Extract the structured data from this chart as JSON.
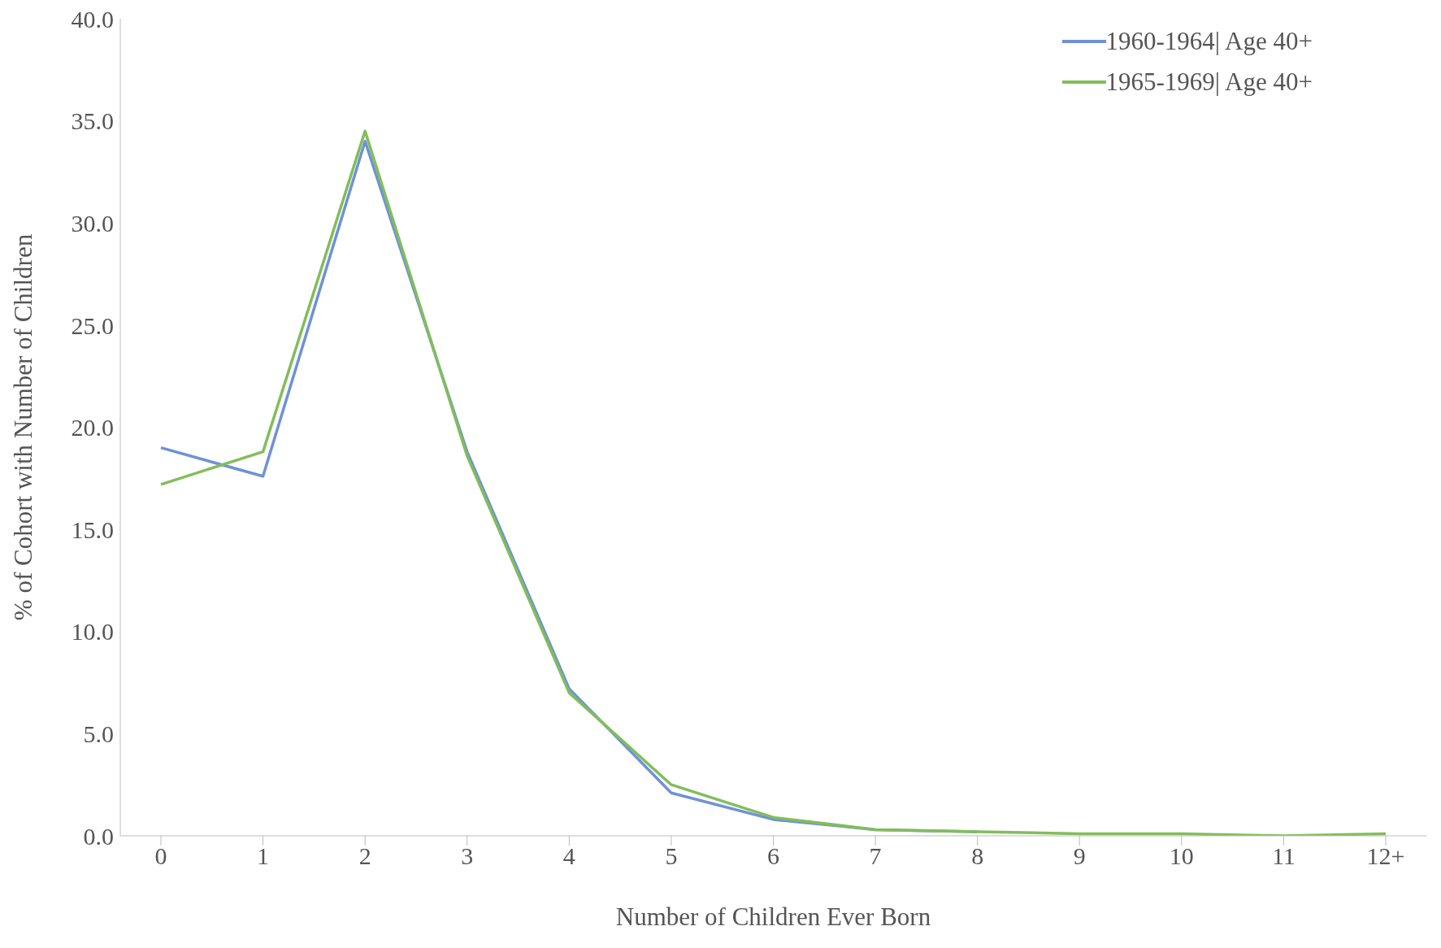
{
  "chart_data": {
    "type": "line",
    "xlabel": "Number of Children Ever Born",
    "ylabel": "%  of Cohort with Number of Children",
    "categories": [
      "0",
      "1",
      "2",
      "3",
      "4",
      "5",
      "6",
      "7",
      "8",
      "9",
      "10",
      "11",
      "12+"
    ],
    "series": [
      {
        "name": "1960-1964| Age 40+",
        "color": "#6f91d8",
        "values": [
          19.0,
          17.6,
          34.0,
          18.8,
          7.2,
          2.1,
          0.8,
          0.3,
          0.2,
          null,
          null,
          null,
          null
        ]
      },
      {
        "name": "1965-1969| Age 40+",
        "color": "#82bd5a",
        "values": [
          17.2,
          18.8,
          34.5,
          18.6,
          7.0,
          2.5,
          0.9,
          0.3,
          0.2,
          0.1,
          0.1,
          0.0,
          0.1
        ]
      }
    ],
    "ylim": [
      0,
      40
    ],
    "yticks": [
      {
        "value": 0,
        "label": "0.0"
      },
      {
        "value": 5,
        "label": "5.0"
      },
      {
        "value": 10,
        "label": "10.0"
      },
      {
        "value": 15,
        "label": "15.0"
      },
      {
        "value": 20,
        "label": "20.0"
      },
      {
        "value": 25,
        "label": "25.0"
      },
      {
        "value": 30,
        "label": "30.0"
      },
      {
        "value": 35,
        "label": "35.0"
      },
      {
        "value": 40,
        "label": "40.0"
      }
    ],
    "grid": false,
    "legend": "top right",
    "marker": "none",
    "line_style": "solid"
  }
}
